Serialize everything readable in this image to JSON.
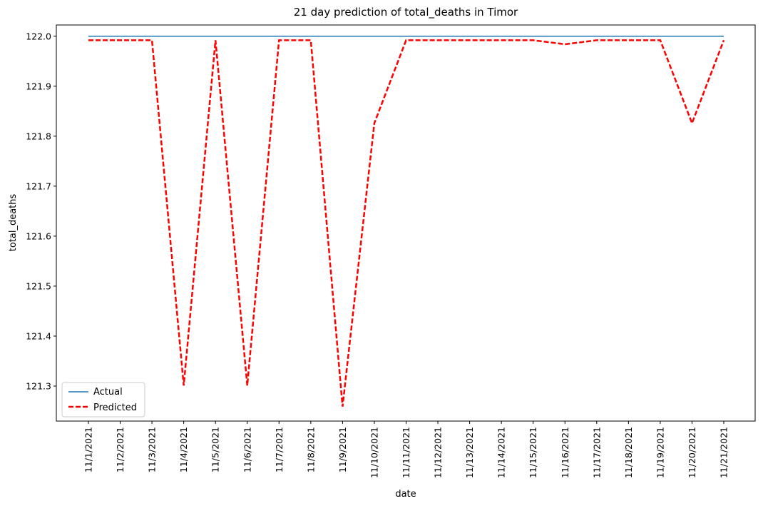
{
  "chart_data": {
    "type": "line",
    "title": "21 day prediction of total_deaths in Timor",
    "xlabel": "date",
    "ylabel": "total_deaths",
    "categories": [
      "11/1/2021",
      "11/2/2021",
      "11/3/2021",
      "11/4/2021",
      "11/5/2021",
      "11/6/2021",
      "11/7/2021",
      "11/8/2021",
      "11/9/2021",
      "11/10/2021",
      "11/11/2021",
      "11/12/2021",
      "11/13/2021",
      "11/14/2021",
      "11/15/2021",
      "11/16/2021",
      "11/17/2021",
      "11/18/2021",
      "11/19/2021",
      "11/20/2021",
      "11/21/2021"
    ],
    "yticks": [
      "121.3",
      "121.4",
      "121.5",
      "121.6",
      "121.7",
      "121.8",
      "121.9",
      "122.0"
    ],
    "ylim": [
      121.23,
      122.0225
    ],
    "grid": false,
    "legend_position": "lower-left",
    "series": [
      {
        "name": "Actual",
        "color": "#1f77b4",
        "style": "solid",
        "values": [
          122,
          122,
          122,
          122,
          122,
          122,
          122,
          122,
          122,
          122,
          122,
          122,
          122,
          122,
          122,
          122,
          122,
          122,
          122,
          122,
          122
        ]
      },
      {
        "name": "Predicted",
        "color": "#ff0000",
        "style": "dashed",
        "values": [
          121.992,
          121.992,
          121.992,
          121.301,
          121.992,
          121.301,
          121.992,
          121.992,
          121.259,
          121.826,
          121.992,
          121.992,
          121.992,
          121.992,
          121.992,
          121.984,
          121.992,
          121.992,
          121.992,
          121.826,
          121.992
        ]
      }
    ]
  }
}
